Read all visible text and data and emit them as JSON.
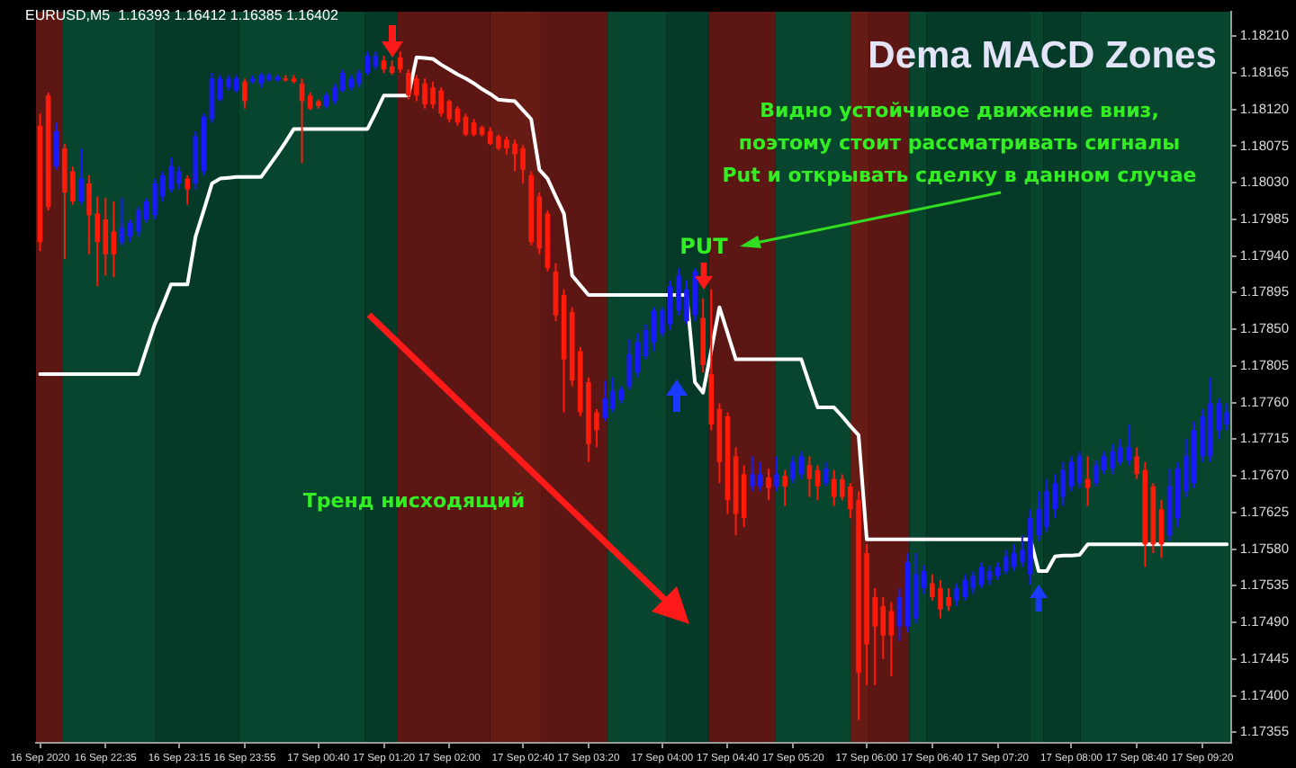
{
  "chart_data": {
    "type": "candlestick",
    "title": "Dema MACD Zones",
    "legend": false,
    "grid": false,
    "categories": [
      "16 Sep 2020",
      null,
      null,
      null,
      null,
      null,
      null,
      null,
      "16 Sep 22:35",
      null,
      null,
      null,
      null,
      null,
      null,
      null,
      null,
      "16 Sep 23:15",
      null,
      null,
      null,
      null,
      null,
      null,
      null,
      "16 Sep 23:55",
      null,
      null,
      null,
      null,
      null,
      null,
      null,
      null,
      "17 Sep 00:40",
      null,
      null,
      null,
      null,
      null,
      null,
      null,
      "17 Sep 01:20",
      null,
      null,
      null,
      null,
      null,
      null,
      null,
      "17 Sep 02:00",
      null,
      null,
      null,
      null,
      null,
      null,
      null,
      null,
      "17 Sep 02:40",
      null,
      null,
      null,
      null,
      null,
      null,
      null,
      "17 Sep 03:20",
      null,
      null,
      null,
      null,
      null,
      null,
      null,
      null,
      "17 Sep 04:00",
      null,
      null,
      null,
      null,
      null,
      null,
      null,
      "17 Sep 04:40",
      null,
      null,
      null,
      null,
      null,
      null,
      null,
      "17 Sep 05:20",
      null,
      null,
      null,
      null,
      null,
      null,
      null,
      null,
      "17 Sep 06:00",
      null,
      null,
      null,
      null,
      null,
      null,
      null,
      "17 Sep 06:40",
      null,
      null,
      null,
      null,
      null,
      null,
      null,
      "17 Sep 07:20",
      null,
      null,
      null,
      null,
      null,
      null,
      null,
      null,
      "17 Sep 08:00",
      null,
      null,
      null,
      null,
      null,
      null,
      null,
      "17 Sep 08:40",
      null,
      null,
      null,
      null,
      null,
      null,
      null,
      "17 Sep 09:20",
      null,
      null,
      null
    ],
    "ylim": [
      1.17342,
      1.1824
    ],
    "yticks": [
      1.17355,
      {
        "value": 1.174,
        "label": "1.17400"
      },
      1.17445,
      {
        "value": 1.1749,
        "label": "1.17490"
      },
      1.17535,
      {
        "value": 1.1758,
        "label": "1.17580"
      },
      1.17625,
      {
        "value": 1.1767,
        "label": "1.17670"
      },
      1.17715,
      {
        "value": 1.1776,
        "label": "1.17760"
      },
      1.17805,
      {
        "value": 1.1785,
        "label": "1.17850"
      },
      1.17895,
      {
        "value": 1.1794,
        "label": "1.17940"
      },
      1.17985,
      {
        "value": 1.1803,
        "label": "1.18030"
      },
      1.18075,
      {
        "value": 1.1812,
        "label": "1.18120"
      },
      1.18165,
      {
        "value": 1.1821,
        "label": "1.18210"
      }
    ],
    "series": [
      {
        "colors": [
          "#ff1a0a",
          "#ff1a0a",
          "#1a1aff",
          "#ff1a0a",
          "#ff1a0a",
          "#1a1aff",
          "#ff1a0a",
          "#ff1a0a",
          "#ff1a0a",
          "#ff1a0a",
          "#1a1aff",
          "#1a1aff",
          "#1a1aff",
          "#1a1aff",
          "#1a1aff",
          "#1a1aff",
          "#1a1aff",
          "#1a1aff",
          "#ff1a0a",
          "#1a1aff",
          "#1a1aff",
          "#1a1aff",
          "#1a1aff",
          "#1a1aff",
          "#1a1aff",
          "#ff1a0a",
          "#1a1aff",
          "#1a1aff",
          "#1a1aff",
          "#1a1aff",
          "#ff1a0a",
          "#ff1a0a",
          "#ff1a0a",
          "#ff1a0a",
          "#ff1a0a",
          "#1a1aff",
          "#1a1aff",
          "#1a1aff",
          "#1a1aff",
          "#1a1aff",
          "#1a1aff",
          "#1a1aff",
          "#ff1a0a",
          "#ff1a0a",
          "#ff1a0a",
          "#ff1a0a",
          "#ff1a0a",
          "#ff1a0a",
          "#ff1a0a",
          "#ff1a0a",
          "#ff1a0a",
          "#ff1a0a",
          "#ff1a0a",
          "#ff1a0a",
          "#ff1a0a",
          "#ff1a0a",
          "#ff1a0a",
          "#ff1a0a",
          "#ff1a0a",
          "#ff1a0a",
          "#ff1a0a",
          "#ff1a0a",
          "#ff1a0a",
          "#ff1a0a",
          "#ff1a0a",
          "#ff1a0a",
          "#ff1a0a",
          "#ff1a0a",
          "#ff1a0a",
          "#1a1aff",
          "#1a1aff",
          "#1a1aff",
          "#1a1aff",
          "#1a1aff",
          "#1a1aff",
          "#1a1aff",
          "#1a1aff",
          "#1a1aff",
          "#1a1aff",
          "#1a1aff",
          "#1a1aff",
          "#ff1a0a",
          "#ff1a0a",
          "#ff1a0a",
          "#ff1a0a",
          "#ff1a0a",
          "#ff1a0a",
          "#1a1aff",
          "#1a1aff",
          "#ff1a0a",
          "#1a1aff",
          "#ff1a0a",
          "#1a1aff",
          "#1a1aff",
          "#ff1a0a",
          "#ff1a0a",
          "#1a1aff",
          "#ff1a0a",
          "#ff1a0a",
          "#ff1a0a",
          "#ff1a0a",
          "#ff1a0a",
          "#ff1a0a",
          "#ff1a0a",
          "#ff1a0a",
          "#1a1aff",
          "#1a1aff",
          "#1a1aff",
          "#1a1aff",
          "#ff1a0a",
          "#ff1a0a",
          "#ff1a0a",
          "#1a1aff",
          "#1a1aff",
          "#1a1aff",
          "#1a1aff",
          "#1a1aff",
          "#1a1aff",
          "#1a1aff",
          "#1a1aff",
          "#1a1aff",
          "#1a1aff",
          "#1a1aff",
          "#1a1aff",
          "#1a1aff",
          "#1a1aff",
          "#1a1aff",
          "#1a1aff",
          "#ff1a0a",
          "#1a1aff",
          "#1a1aff",
          "#1a1aff",
          "#1a1aff",
          "#1a1aff",
          "#ff1a0a",
          "#ff1a0a",
          "#ff1a0a",
          "#ff1a0a",
          "#1a1aff",
          "#1a1aff",
          "#1a1aff",
          "#1a1aff",
          "#1a1aff",
          "#1a1aff",
          "#1a1aff",
          "#1a1aff"
        ],
        "ohlc": [
          [
            1.181,
            1.18115,
            1.17946,
            1.17957
          ],
          [
            1.18137,
            1.18141,
            1.17996,
            1.18
          ],
          [
            1.1805,
            1.18104,
            1.18046,
            1.18093
          ],
          [
            1.18072,
            1.18078,
            1.17936,
            1.18018
          ],
          [
            1.18044,
            1.1805,
            1.18003,
            1.18007
          ],
          [
            1.18007,
            1.18072,
            1.18003,
            1.18035
          ],
          [
            1.18029,
            1.18039,
            1.17942,
            1.1799
          ],
          [
            1.17992,
            1.18013,
            1.17903,
            1.17957
          ],
          [
            1.17985,
            1.18011,
            1.17916,
            1.17942
          ],
          [
            1.1797,
            1.18007,
            1.17914,
            1.17942
          ],
          [
            1.17957,
            1.18011,
            1.17953,
            1.17975
          ],
          [
            1.17964,
            1.17985,
            1.17957,
            1.17981
          ],
          [
            1.1797,
            1.18,
            1.17964,
            1.17996
          ],
          [
            1.17985,
            1.18011,
            1.17981,
            1.18007
          ],
          [
            1.1799,
            1.18035,
            1.17985,
            1.18029
          ],
          [
            1.18013,
            1.18044,
            1.18007,
            1.18039
          ],
          [
            1.18022,
            1.18061,
            1.18018,
            1.1805
          ],
          [
            1.18029,
            1.1805,
            1.18022,
            1.18044
          ],
          [
            1.18035,
            1.18039,
            1.18003,
            1.18022
          ],
          [
            1.18029,
            1.18093,
            1.18022,
            1.18087
          ],
          [
            1.18044,
            1.18115,
            1.18039,
            1.18111
          ],
          [
            1.18108,
            1.18165,
            1.18104,
            1.18158
          ],
          [
            1.18132,
            1.18162,
            1.1813,
            1.18158
          ],
          [
            1.18147,
            1.18162,
            1.18143,
            1.18158
          ],
          [
            1.18143,
            1.18162,
            1.18141,
            1.18158
          ],
          [
            1.18154,
            1.18158,
            1.18121,
            1.1813
          ],
          [
            1.18154,
            1.18162,
            1.18152,
            1.18158
          ],
          [
            1.18152,
            1.18165,
            1.18147,
            1.18162
          ],
          [
            1.18156,
            1.18165,
            1.18154,
            1.18162
          ],
          [
            1.18156,
            1.18162,
            1.18154,
            1.1816
          ],
          [
            1.18158,
            1.18162,
            1.18154,
            1.18156
          ],
          [
            1.18158,
            1.18162,
            1.18152,
            1.18154
          ],
          [
            1.18152,
            1.18158,
            1.18054,
            1.1813
          ],
          [
            1.18137,
            1.18141,
            1.18119,
            1.18121
          ],
          [
            1.1813,
            1.18132,
            1.18121,
            1.18124
          ],
          [
            1.18124,
            1.18141,
            1.18121,
            1.18137
          ],
          [
            1.1813,
            1.18152,
            1.18126,
            1.18147
          ],
          [
            1.18143,
            1.18169,
            1.18141,
            1.18165
          ],
          [
            1.18147,
            1.18162,
            1.18143,
            1.18158
          ],
          [
            1.18152,
            1.18169,
            1.18147,
            1.18165
          ],
          [
            1.18165,
            1.18191,
            1.18162,
            1.18186
          ],
          [
            1.18173,
            1.18191,
            1.18169,
            1.18186
          ],
          [
            1.1818,
            1.18186,
            1.18165,
            1.18169
          ],
          [
            1.18173,
            1.1818,
            1.18162,
            1.18165
          ],
          [
            1.18184,
            1.18191,
            1.18165,
            1.18169
          ],
          [
            1.18165,
            1.18169,
            1.18132,
            1.18137
          ],
          [
            1.18158,
            1.18162,
            1.1813,
            1.18137
          ],
          [
            1.18152,
            1.18158,
            1.18121,
            1.18126
          ],
          [
            1.18147,
            1.18154,
            1.18121,
            1.18126
          ],
          [
            1.18143,
            1.18147,
            1.18111,
            1.18115
          ],
          [
            1.1813,
            1.18132,
            1.18104,
            1.18108
          ],
          [
            1.18121,
            1.18124,
            1.181,
            1.18104
          ],
          [
            1.18111,
            1.18115,
            1.18087,
            1.18089
          ],
          [
            1.18104,
            1.18108,
            1.18087,
            1.18089
          ],
          [
            1.18098,
            1.181,
            1.18087,
            1.18089
          ],
          [
            1.18093,
            1.18098,
            1.18076,
            1.18078
          ],
          [
            1.18087,
            1.18089,
            1.1807,
            1.18072
          ],
          [
            1.18083,
            1.18087,
            1.18065,
            1.18072
          ],
          [
            1.18078,
            1.18083,
            1.18044,
            1.18065
          ],
          [
            1.18072,
            1.18076,
            1.18029,
            1.18046
          ],
          [
            1.18039,
            1.18044,
            1.17953,
            1.17957
          ],
          [
            1.18013,
            1.18018,
            1.17942,
            1.17949
          ],
          [
            1.17992,
            1.17996,
            1.17921,
            1.17925
          ],
          [
            1.17921,
            1.17931,
            1.1786,
            1.17867
          ],
          [
            1.17892,
            1.17899,
            1.17748,
            1.17813
          ],
          [
            1.17871,
            1.17877,
            1.1778,
            1.17787
          ],
          [
            1.17823,
            1.17828,
            1.17743,
            1.17748
          ],
          [
            1.17785,
            1.17791,
            1.17687,
            1.17709
          ],
          [
            1.17748,
            1.17752,
            1.17705,
            1.17726
          ],
          [
            1.17741,
            1.17787,
            1.17737,
            1.17765
          ],
          [
            1.17752,
            1.17791,
            1.17748,
            1.17774
          ],
          [
            1.17763,
            1.1778,
            1.17759,
            1.17776
          ],
          [
            1.1778,
            1.17838,
            1.17776,
            1.17819
          ],
          [
            1.17797,
            1.17845,
            1.17791,
            1.17834
          ],
          [
            1.17817,
            1.17856,
            1.17813,
            1.17849
          ],
          [
            1.17834,
            1.17877,
            1.17823,
            1.17873
          ],
          [
            1.17845,
            1.17877,
            1.17841,
            1.17873
          ],
          [
            1.17856,
            1.1791,
            1.17849,
            1.17903
          ],
          [
            1.17873,
            1.17925,
            1.17867,
            1.17916
          ],
          [
            1.1786,
            1.1791,
            1.17856,
            1.17899
          ],
          [
            1.17867,
            1.17925,
            1.1786,
            1.17921
          ],
          [
            1.17864,
            1.17888,
            1.17797,
            1.17806
          ],
          [
            1.17795,
            1.17899,
            1.17726,
            1.17733
          ],
          [
            1.17752,
            1.17759,
            1.17661,
            1.17687
          ],
          [
            1.17743,
            1.17748,
            1.17623,
            1.1764
          ],
          [
            1.17694,
            1.17705,
            1.17597,
            1.17623
          ],
          [
            1.17672,
            1.17683,
            1.17607,
            1.17618
          ],
          [
            1.17657,
            1.17694,
            1.17651,
            1.17672
          ],
          [
            1.17657,
            1.17687,
            1.17651,
            1.17672
          ],
          [
            1.17668,
            1.17679,
            1.1764,
            1.17655
          ],
          [
            1.17657,
            1.17694,
            1.17651,
            1.17672
          ],
          [
            1.1767,
            1.17677,
            1.17633,
            1.17657
          ],
          [
            1.17666,
            1.17694,
            1.17661,
            1.17687
          ],
          [
            1.17672,
            1.177,
            1.17666,
            1.17694
          ],
          [
            1.17683,
            1.17694,
            1.17644,
            1.17666
          ],
          [
            1.17677,
            1.17683,
            1.1764,
            1.17657
          ],
          [
            1.17661,
            1.17687,
            1.17657,
            1.17679
          ],
          [
            1.17666,
            1.17677,
            1.17633,
            1.17644
          ],
          [
            1.17666,
            1.17672,
            1.1764,
            1.17644
          ],
          [
            1.17657,
            1.17661,
            1.17618,
            1.17629
          ],
          [
            1.1764,
            1.17651,
            1.1737,
            1.17428
          ],
          [
            1.17575,
            1.17586,
            1.17413,
            1.17463
          ],
          [
            1.17521,
            1.17532,
            1.17413,
            1.17485
          ],
          [
            1.1751,
            1.17521,
            1.17445,
            1.17474
          ],
          [
            1.17504,
            1.17515,
            1.17424,
            1.17474
          ],
          [
            1.17485,
            1.17532,
            1.17467,
            1.17521
          ],
          [
            1.17485,
            1.17575,
            1.17478,
            1.17564
          ],
          [
            1.17495,
            1.17575,
            1.17489,
            1.17549
          ],
          [
            1.17532,
            1.1756,
            1.17525,
            1.17553
          ],
          [
            1.17538,
            1.17549,
            1.17517,
            1.17521
          ],
          [
            1.17532,
            1.17542,
            1.17495,
            1.17506
          ],
          [
            1.17521,
            1.17532,
            1.17504,
            1.1751
          ],
          [
            1.17517,
            1.17538,
            1.1751,
            1.17532
          ],
          [
            1.17521,
            1.17549,
            1.17517,
            1.17542
          ],
          [
            1.17532,
            1.17553,
            1.17525,
            1.17547
          ],
          [
            1.17536,
            1.17564,
            1.17532,
            1.17558
          ],
          [
            1.17542,
            1.1756,
            1.17536,
            1.17553
          ],
          [
            1.17547,
            1.17564,
            1.17542,
            1.17558
          ],
          [
            1.17553,
            1.17579,
            1.17549,
            1.17571
          ],
          [
            1.17558,
            1.17586,
            1.17553,
            1.17575
          ],
          [
            1.17564,
            1.17597,
            1.17558,
            1.17579
          ],
          [
            1.17549,
            1.17629,
            1.17536,
            1.17618
          ],
          [
            1.17597,
            1.17651,
            1.1759,
            1.17629
          ],
          [
            1.17607,
            1.17666,
            1.17601,
            1.17651
          ],
          [
            1.17629,
            1.17672,
            1.17618,
            1.17661
          ],
          [
            1.17644,
            1.17687,
            1.17633,
            1.17677
          ],
          [
            1.17657,
            1.17694,
            1.17651,
            1.17687
          ],
          [
            1.17661,
            1.177,
            1.17655,
            1.17694
          ],
          [
            1.17666,
            1.17694,
            1.17633,
            1.17655
          ],
          [
            1.17661,
            1.17689,
            1.17657,
            1.17683
          ],
          [
            1.17677,
            1.177,
            1.17672,
            1.17694
          ],
          [
            1.17679,
            1.17709,
            1.17672,
            1.177
          ],
          [
            1.17687,
            1.17715,
            1.17683,
            1.17705
          ],
          [
            1.17689,
            1.17733,
            1.17683,
            1.17705
          ],
          [
            1.17694,
            1.17705,
            1.17666,
            1.17672
          ],
          [
            1.17677,
            1.17687,
            1.17558,
            1.17586
          ],
          [
            1.17657,
            1.17661,
            1.17575,
            1.17586
          ],
          [
            1.17629,
            1.1764,
            1.17569,
            1.17586
          ],
          [
            1.17597,
            1.17679,
            1.1759,
            1.17657
          ],
          [
            1.17618,
            1.17687,
            1.17607,
            1.17679
          ],
          [
            1.17651,
            1.17715,
            1.17644,
            1.17694
          ],
          [
            1.17661,
            1.17737,
            1.17655,
            1.17726
          ],
          [
            1.17694,
            1.17752,
            1.17687,
            1.17743
          ],
          [
            1.17694,
            1.17791,
            1.17687,
            1.17759
          ],
          [
            1.17726,
            1.17765,
            1.17715,
            1.17759
          ],
          [
            1.17733,
            1.17759,
            1.17726,
            1.17748
          ]
        ]
      },
      {
        "type": "line",
        "color": "#ffffff",
        "line_style": "solid",
        "values": [
          1.17795,
          1.17795,
          1.17795,
          1.17795,
          1.17795,
          1.17795,
          1.17795,
          1.17795,
          1.17795,
          1.17795,
          1.17795,
          1.17795,
          1.17795,
          1.17826,
          1.17856,
          1.1788,
          1.17905,
          1.17905,
          1.17905,
          1.17964,
          1.17996,
          1.18029,
          1.18035,
          1.18036,
          1.18037,
          1.18037,
          1.18037,
          1.18037,
          1.18051,
          1.18065,
          1.1808,
          1.18096,
          1.18096,
          1.18096,
          1.18096,
          1.18096,
          1.18096,
          1.18096,
          1.18096,
          1.18096,
          1.18096,
          1.18116,
          1.18137,
          1.18137,
          1.18137,
          1.18137,
          1.18184,
          1.18183,
          1.18182,
          1.18175,
          1.18169,
          1.18163,
          1.18158,
          1.18152,
          1.18145,
          1.18139,
          1.18132,
          1.18131,
          1.1813,
          1.18119,
          1.18108,
          1.18046,
          1.18035,
          1.18013,
          1.17992,
          1.17916,
          1.17904,
          1.17892,
          1.17892,
          1.17892,
          1.17892,
          1.17892,
          1.17892,
          1.17892,
          1.17892,
          1.17892,
          1.17892,
          1.17892,
          1.17892,
          1.17892,
          1.17785,
          1.17772,
          1.17824,
          1.17877,
          1.17845,
          1.17813,
          1.17813,
          1.17813,
          1.17813,
          1.17813,
          1.17813,
          1.17813,
          1.17813,
          1.17813,
          1.17783,
          1.17754,
          1.17754,
          1.17754,
          1.17743,
          1.17731,
          1.1772,
          1.17592,
          1.17592,
          1.17592,
          1.17592,
          1.17592,
          1.17592,
          1.17592,
          1.17592,
          1.17592,
          1.17592,
          1.17592,
          1.17592,
          1.17592,
          1.17592,
          1.17592,
          1.17592,
          1.17592,
          1.17592,
          1.17592,
          1.17592,
          1.17592,
          1.17553,
          1.17553,
          1.17571,
          1.17572,
          1.17572,
          1.17573,
          1.17586,
          1.17586,
          1.17586,
          1.17586,
          1.17586,
          1.17586,
          1.17586,
          1.17586,
          1.17586,
          1.17586,
          1.17586,
          1.17586,
          1.17586,
          1.17586,
          1.17586,
          1.17586,
          1.17586,
          1.17586
        ]
      }
    ],
    "annotations": [
      "EURUSD,M5  1.16393 1.16412 1.16385 1.16402",
      "PUT",
      "Видно устойчивое движение вниз,\nпоэтому стоит рассматривать сигналы\nPut и открывать сделку в данном случае",
      "Тренд нисходящий"
    ]
  }
}
